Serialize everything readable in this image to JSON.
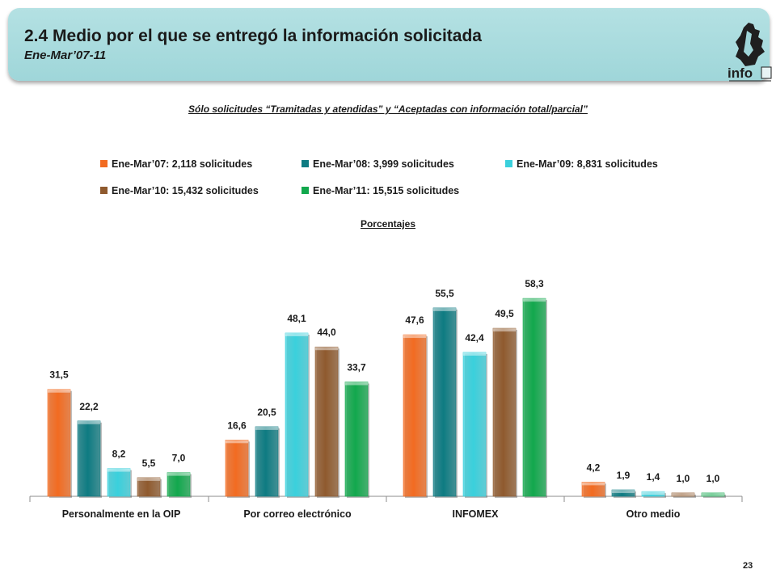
{
  "header": {
    "title": "2.4 Medio por el que se entregó la información solicitada",
    "subtitle": "Ene-Mar’07-11"
  },
  "logo": {
    "text": "info",
    "icon": "mexico-city-map-icon"
  },
  "note": "Sólo solicitudes “Tramitadas y atendidas” y “Aceptadas con información total/parcial”",
  "page_number": "23",
  "chart_data": {
    "type": "bar",
    "title": "",
    "units_label": "Porcentajes",
    "categories": [
      "Personalmente en la OIP",
      "Por correo electrónico",
      "INFOMEX",
      "Otro medio"
    ],
    "ylim": [
      0,
      65
    ],
    "grid": false,
    "legend_position": "top",
    "series": [
      {
        "name": "Ene-Mar’07: 2,118 solicitudes",
        "color": "#f26b21",
        "values": [
          31.5,
          16.6,
          47.6,
          4.2
        ],
        "labels": [
          "31,5",
          "16,6",
          "47,6",
          "4,2"
        ]
      },
      {
        "name": "Ene-Mar’08: 3,999 solicitudes",
        "color": "#0e7b82",
        "values": [
          22.2,
          20.5,
          55.5,
          1.9
        ],
        "labels": [
          "22,2",
          "20,5",
          "55,5",
          "1,9"
        ]
      },
      {
        "name": "Ene-Mar’09: 8,831 solicitudes",
        "color": "#3ad0dc",
        "values": [
          8.2,
          48.1,
          42.4,
          1.4
        ],
        "labels": [
          "8,2",
          "48,1",
          "42,4",
          "1,4"
        ]
      },
      {
        "name": "Ene-Mar’10: 15,432 solicitudes",
        "color": "#8f5a2e",
        "values": [
          5.5,
          44.0,
          49.5,
          1.0
        ],
        "labels": [
          "5,5",
          "44,0",
          "49,5",
          "1,0"
        ]
      },
      {
        "name": "Ene-Mar’11: 15,515 solicitudes",
        "color": "#12a84d",
        "values": [
          7.0,
          33.7,
          58.3,
          1.0
        ],
        "labels": [
          "7,0",
          "33,7",
          "58,3",
          "1,0"
        ]
      }
    ]
  }
}
